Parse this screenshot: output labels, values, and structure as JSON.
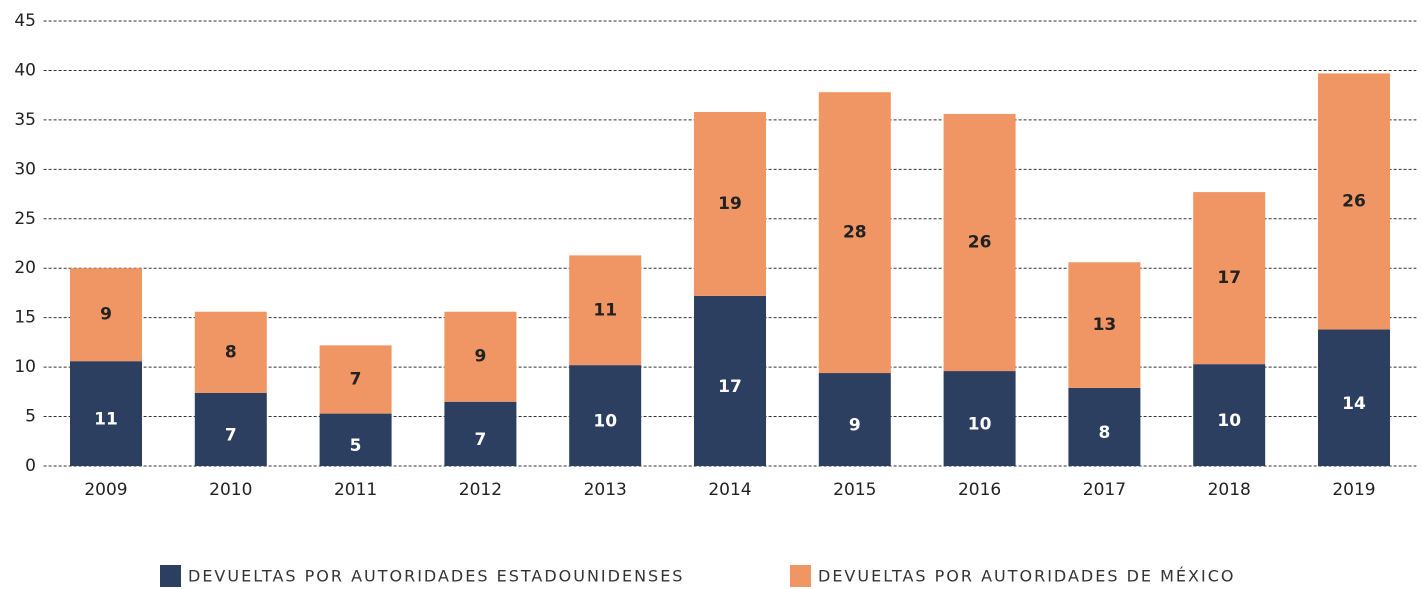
{
  "chart_data": {
    "type": "stacked_bar",
    "categories": [
      "2009",
      "2010",
      "2011",
      "2012",
      "2013",
      "2014",
      "2015",
      "2016",
      "2017",
      "2018",
      "2019"
    ],
    "series": [
      {
        "name": "DEVUELTAS POR AUTORIDADES ESTADOUNIDENSES",
        "color": "#2c3f61",
        "values": [
          10.6,
          7.4,
          5.3,
          6.5,
          10.2,
          17.2,
          9.4,
          9.6,
          7.9,
          10.3,
          13.8
        ],
        "value_labels": [
          "11",
          "7",
          "5",
          "7",
          "10",
          "17",
          "9",
          "10",
          "8",
          "10",
          "14"
        ]
      },
      {
        "name": "DEVUELTAS POR AUTORIDADES DE MÉXICO",
        "color": "#f09664",
        "values": [
          9.4,
          8.2,
          6.9,
          9.1,
          11.1,
          18.6,
          28.4,
          26.0,
          12.7,
          17.4,
          25.9
        ],
        "value_labels": [
          "9",
          "8",
          "7",
          "9",
          "11",
          "19",
          "28",
          "26",
          "13",
          "17",
          "26"
        ]
      }
    ],
    "ylim": [
      0,
      45
    ],
    "yticks": [
      0,
      5,
      10,
      15,
      20,
      25,
      30,
      35,
      40,
      45
    ],
    "grid": true
  }
}
